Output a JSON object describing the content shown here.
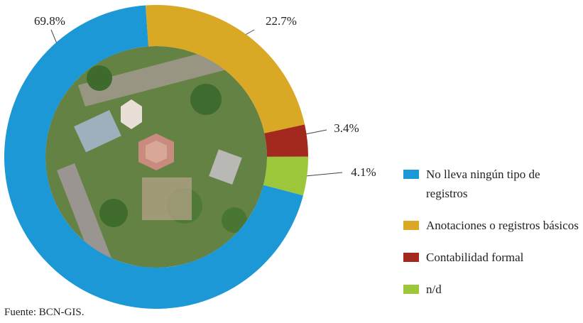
{
  "chart_data": {
    "type": "donut",
    "categories": [
      "No lleva ningún tipo de registros",
      "Anotaciones o registros básicos",
      "Contabilidad formal",
      "n/d"
    ],
    "values": [
      69.8,
      22.7,
      3.4,
      4.1
    ],
    "value_labels": [
      "69.8%",
      "22.7%",
      "3.4%",
      "4.1%"
    ],
    "colors": [
      "#1b98d5",
      "#d9a825",
      "#a3291f",
      "#9dc73a"
    ],
    "source": "Fuente: BCN-GIS."
  }
}
